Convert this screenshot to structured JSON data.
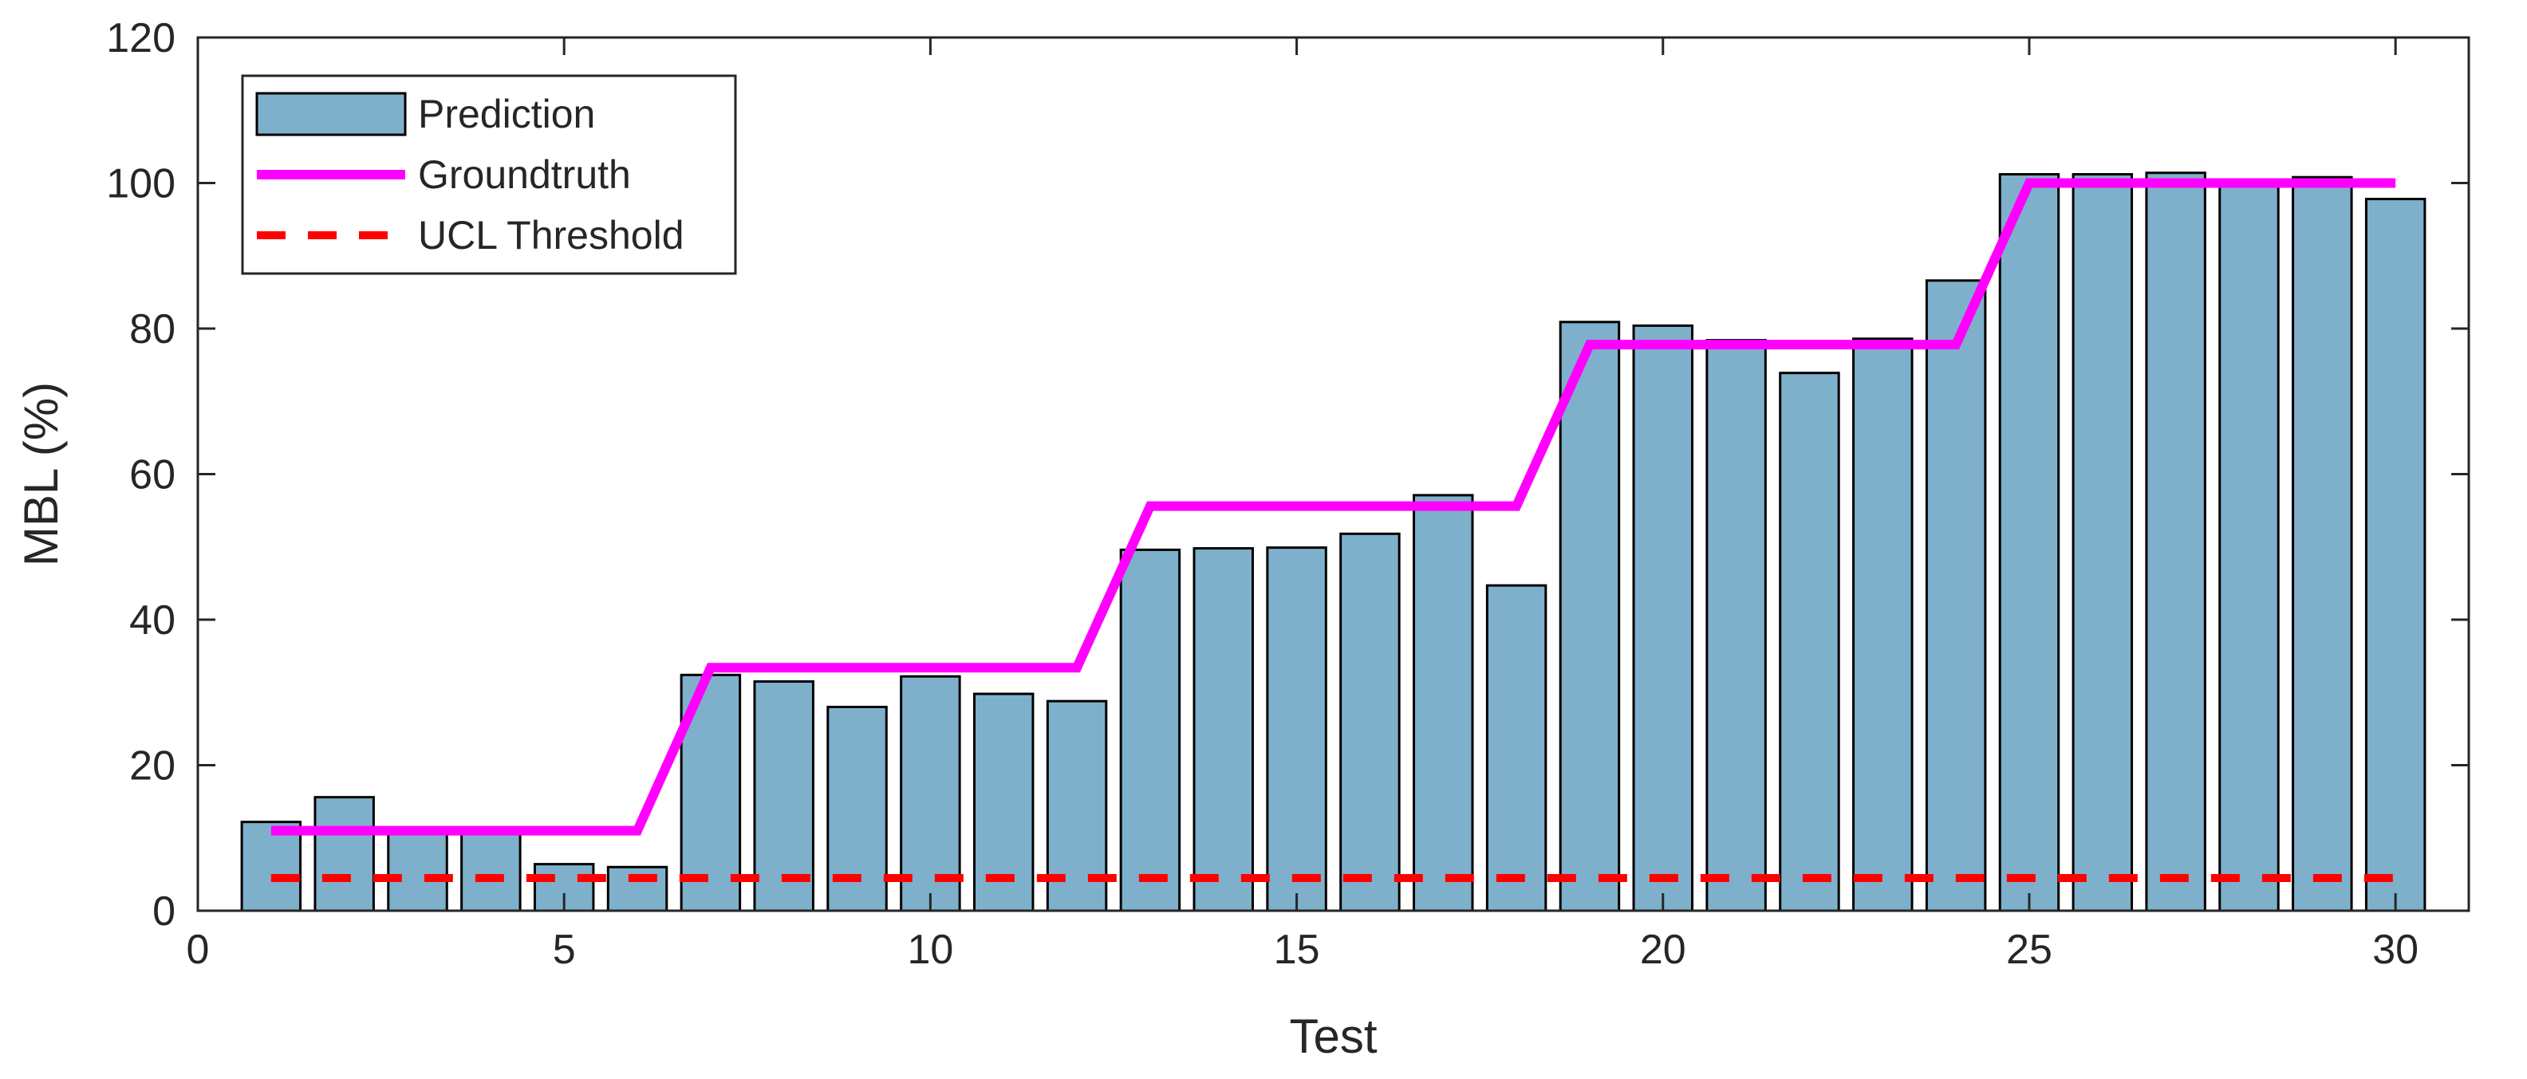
{
  "chart_data": {
    "type": "bar",
    "title": "",
    "xlabel": "Test",
    "ylabel": "MBL (%)",
    "xlim": [
      0,
      31
    ],
    "ylim": [
      0,
      120
    ],
    "xticks": [
      0,
      5,
      10,
      15,
      20,
      25,
      30
    ],
    "yticks": [
      0,
      20,
      40,
      60,
      80,
      100,
      120
    ],
    "grid": false,
    "legend_position": "top-left",
    "x": [
      1,
      2,
      3,
      4,
      5,
      6,
      7,
      8,
      9,
      10,
      11,
      12,
      13,
      14,
      15,
      16,
      17,
      18,
      19,
      20,
      21,
      22,
      23,
      24,
      25,
      26,
      27,
      28,
      29,
      30
    ],
    "series": [
      {
        "name": "Prediction",
        "kind": "bar",
        "color": "#7fb0cb",
        "values": [
          12.2,
          15.6,
          11.0,
          11.0,
          6.4,
          6.0,
          32.4,
          31.5,
          28.0,
          32.2,
          29.8,
          28.8,
          49.6,
          49.8,
          49.9,
          51.8,
          57.1,
          44.7,
          80.9,
          80.4,
          78.4,
          73.9,
          78.6,
          86.6,
          101.2,
          101.2,
          101.4,
          100.0,
          100.8,
          97.8
        ]
      },
      {
        "name": "Groundtruth",
        "kind": "line",
        "color": "#ff00ff",
        "values": [
          11.0,
          11.0,
          11.0,
          11.0,
          11.0,
          11.0,
          33.4,
          33.4,
          33.4,
          33.4,
          33.4,
          33.4,
          55.6,
          55.6,
          55.6,
          55.6,
          55.6,
          55.6,
          77.8,
          77.8,
          77.8,
          77.8,
          77.8,
          77.8,
          100.0,
          100.0,
          100.0,
          100.0,
          100.0,
          100.0
        ]
      },
      {
        "name": "UCL Threshold",
        "kind": "line",
        "style": "dashed",
        "color": "#ff0000",
        "constant": 4.5,
        "x_range": [
          1,
          30
        ]
      }
    ]
  }
}
